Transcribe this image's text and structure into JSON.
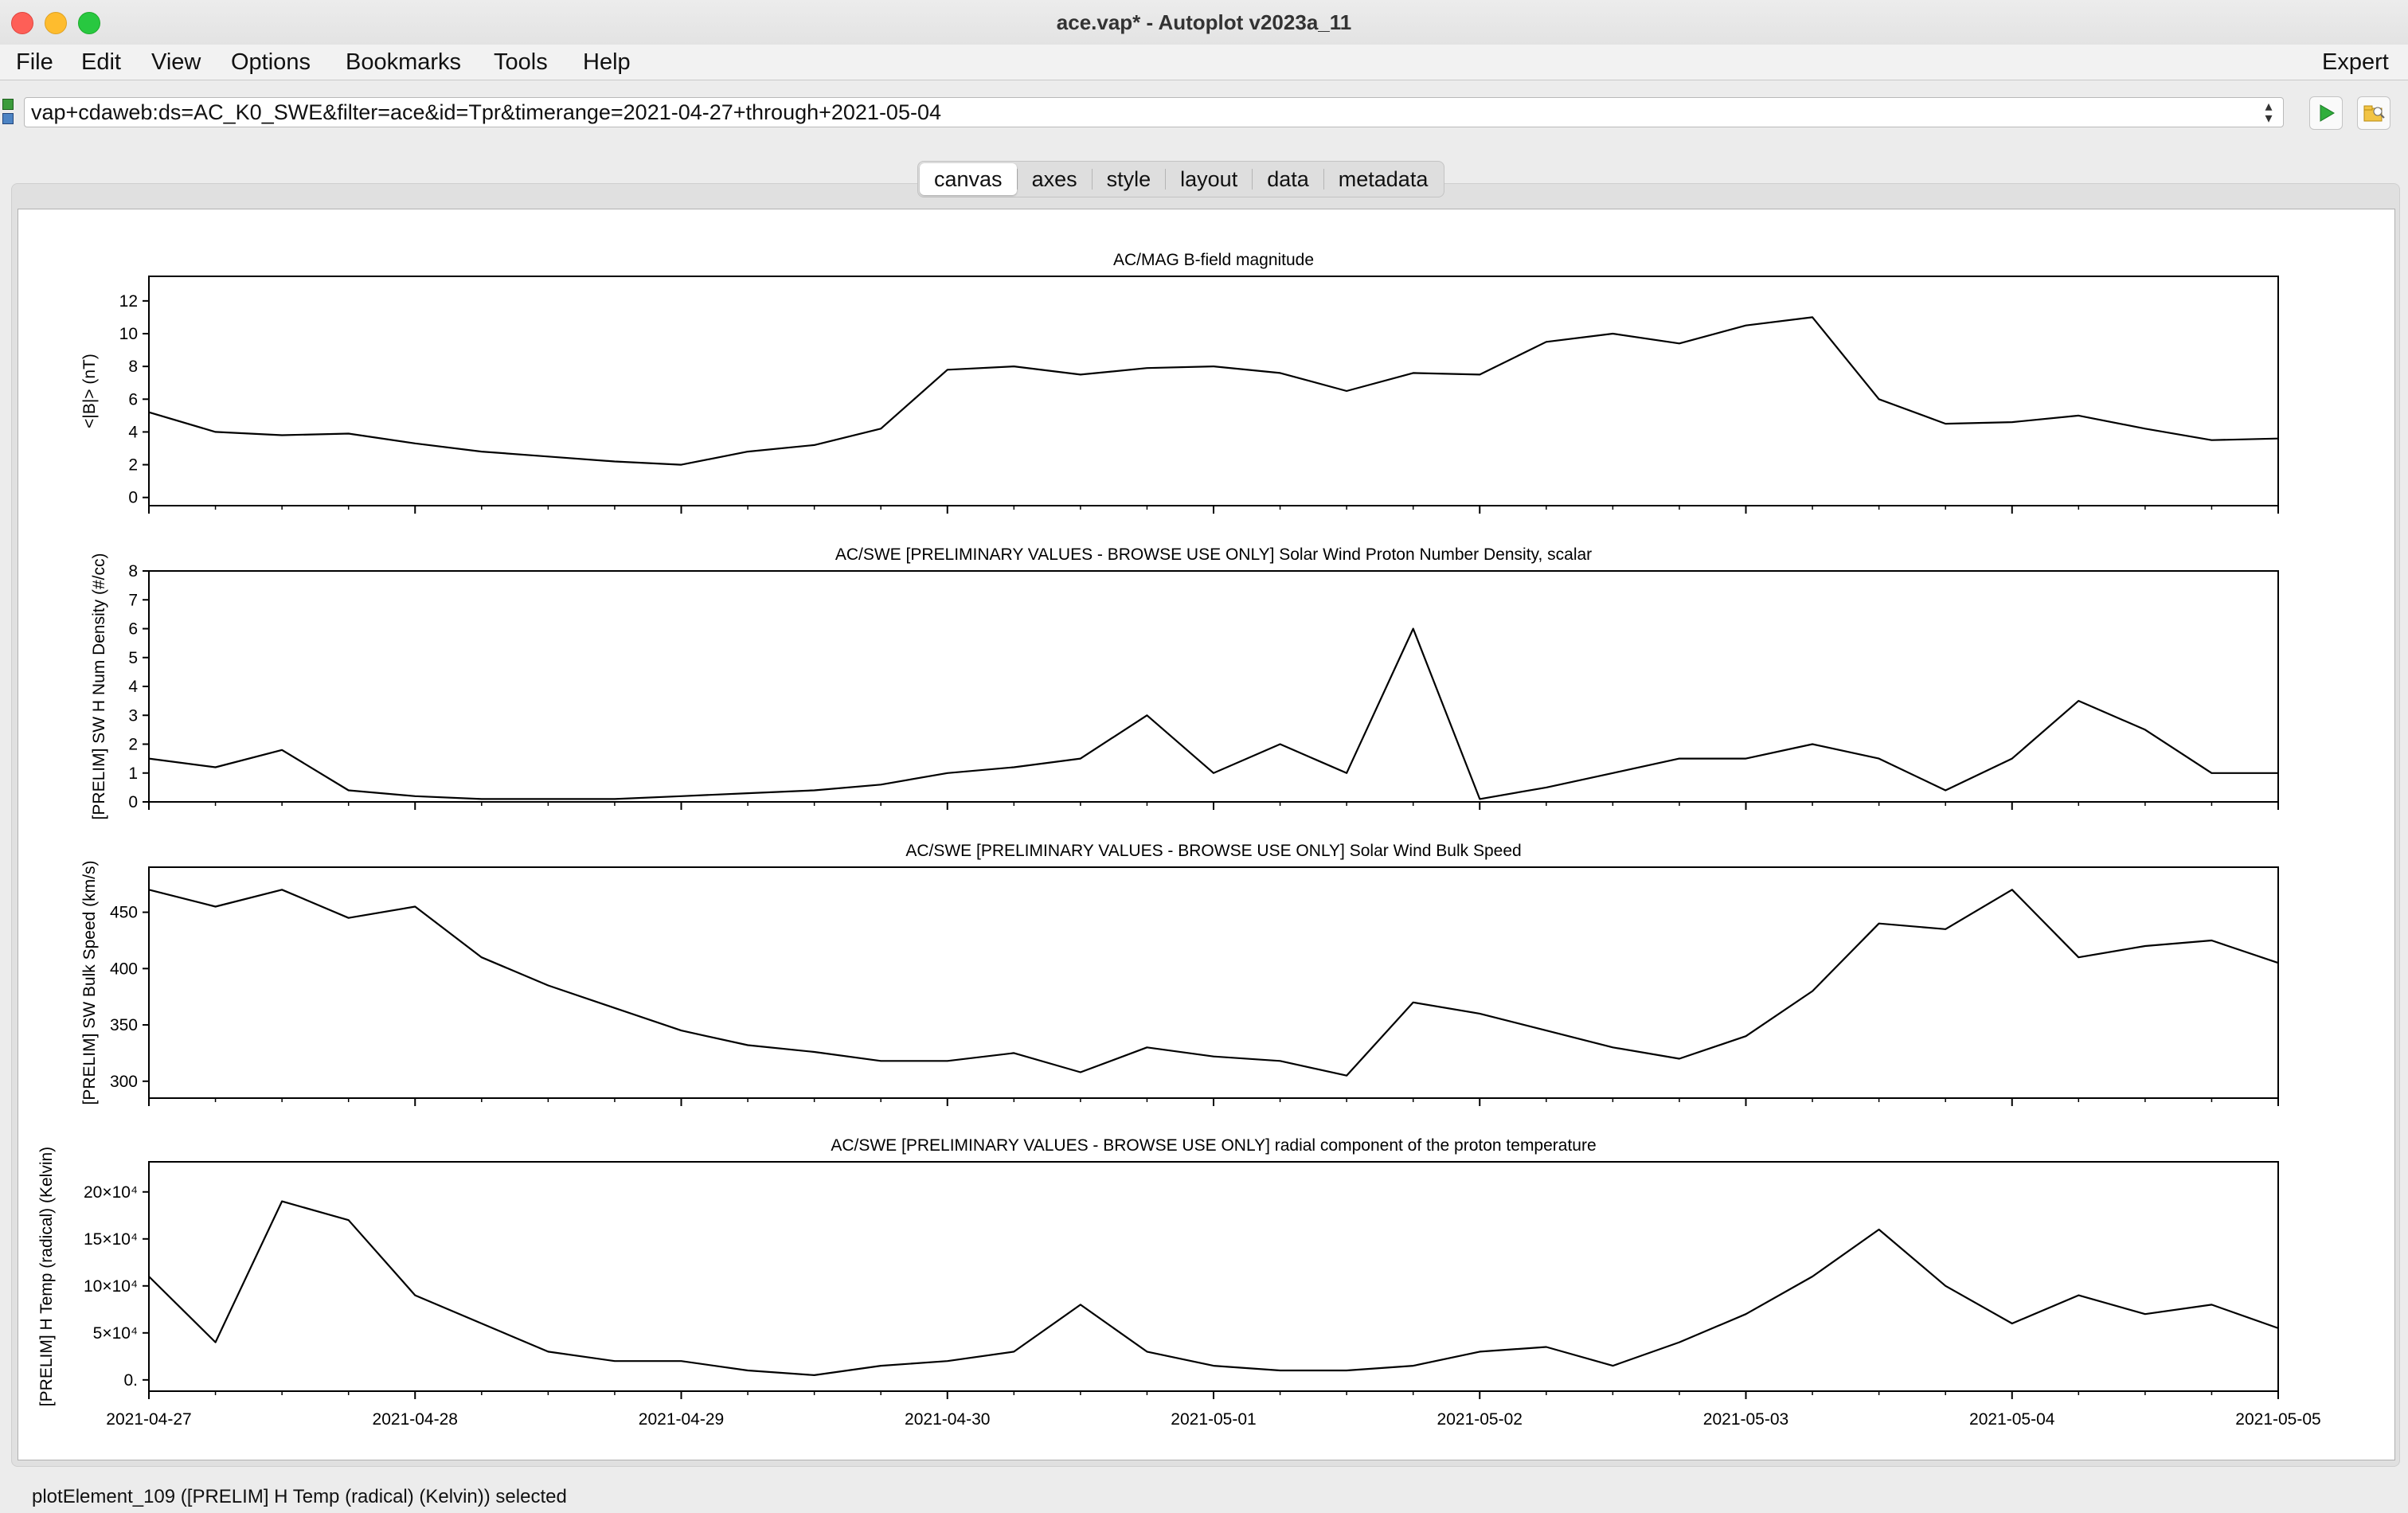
{
  "window": {
    "title": "ace.vap* - Autoplot v2023a_11"
  },
  "menubar": {
    "items": [
      "File",
      "Edit",
      "View",
      "Options",
      "Bookmarks",
      "Tools",
      "Help"
    ],
    "right_item": "Expert"
  },
  "address": {
    "uri": "vap+cdaweb:ds=AC_K0_SWE&filter=ace&id=Tpr&timerange=2021-04-27+through+2021-05-04"
  },
  "tabs": [
    {
      "label": "canvas",
      "active": true
    },
    {
      "label": "axes",
      "active": false
    },
    {
      "label": "style",
      "active": false
    },
    {
      "label": "layout",
      "active": false
    },
    {
      "label": "data",
      "active": false
    },
    {
      "label": "metadata",
      "active": false
    }
  ],
  "status": {
    "text": "plotElement_109 ([PRELIM] H Temp (radical) (Kelvin)) selected"
  },
  "chart_data": [
    {
      "type": "line",
      "title": "AC/MAG  B-field magnitude",
      "ylabel": "<|B|> (nT)",
      "xlabel": "",
      "xlim": [
        "2021-04-27",
        "2021-05-05"
      ],
      "ylim": [
        -0.5,
        13.5
      ],
      "yticks": [
        0,
        2,
        4,
        6,
        8,
        10,
        12
      ],
      "ytick_labels": [
        "0",
        "2",
        "4",
        "6",
        "8",
        "10",
        "12"
      ],
      "series": [
        {
          "x": [
            "2021-04-27 00:00",
            "2021-04-27 06:00",
            "2021-04-27 12:00",
            "2021-04-27 18:00",
            "2021-04-28 00:00",
            "2021-04-28 06:00",
            "2021-04-28 12:00",
            "2021-04-28 18:00",
            "2021-04-29 00:00",
            "2021-04-29 06:00",
            "2021-04-29 12:00",
            "2021-04-29 18:00",
            "2021-04-30 00:00",
            "2021-04-30 06:00",
            "2021-04-30 12:00",
            "2021-04-30 18:00",
            "2021-05-01 00:00",
            "2021-05-01 06:00",
            "2021-05-01 12:00",
            "2021-05-01 18:00",
            "2021-05-02 00:00",
            "2021-05-02 06:00",
            "2021-05-02 12:00",
            "2021-05-02 18:00",
            "2021-05-03 00:00",
            "2021-05-03 06:00",
            "2021-05-03 12:00",
            "2021-05-03 18:00",
            "2021-05-04 00:00",
            "2021-05-04 06:00",
            "2021-05-04 12:00",
            "2021-05-04 18:00",
            "2021-05-05 00:00"
          ],
          "y": [
            5.2,
            4.0,
            3.8,
            3.9,
            3.3,
            2.8,
            2.5,
            2.2,
            2.0,
            2.8,
            3.2,
            4.2,
            7.8,
            8.0,
            7.5,
            7.9,
            8.0,
            7.6,
            6.5,
            7.6,
            7.5,
            9.5,
            10.0,
            9.4,
            10.5,
            11.0,
            6.0,
            4.5,
            4.6,
            5.0,
            4.2,
            3.5,
            3.6
          ]
        }
      ]
    },
    {
      "type": "line",
      "title": "AC/SWE  [PRELIMINARY VALUES - BROWSE USE ONLY] Solar Wind Proton Number Density, scalar",
      "ylabel": "[PRELIM] SW H Num Density (#/cc)",
      "xlabel": "",
      "xlim": [
        "2021-04-27",
        "2021-05-05"
      ],
      "ylim": [
        0,
        8
      ],
      "yticks": [
        0,
        1,
        2,
        3,
        4,
        5,
        6,
        7,
        8
      ],
      "ytick_labels": [
        "0",
        "1",
        "2",
        "3",
        "4",
        "5",
        "6",
        "7",
        "8"
      ],
      "series": [
        {
          "x": [
            "2021-04-27 00:00",
            "2021-04-27 06:00",
            "2021-04-27 12:00",
            "2021-04-27 18:00",
            "2021-04-28 00:00",
            "2021-04-28 06:00",
            "2021-04-28 12:00",
            "2021-04-28 18:00",
            "2021-04-29 00:00",
            "2021-04-29 06:00",
            "2021-04-29 12:00",
            "2021-04-29 18:00",
            "2021-04-30 00:00",
            "2021-04-30 06:00",
            "2021-04-30 12:00",
            "2021-04-30 18:00",
            "2021-05-01 00:00",
            "2021-05-01 06:00",
            "2021-05-01 12:00",
            "2021-05-01 18:00",
            "2021-05-02 00:00",
            "2021-05-02 06:00",
            "2021-05-02 12:00",
            "2021-05-02 18:00",
            "2021-05-03 00:00",
            "2021-05-03 06:00",
            "2021-05-03 12:00",
            "2021-05-03 18:00",
            "2021-05-04 00:00",
            "2021-05-04 06:00",
            "2021-05-04 12:00",
            "2021-05-04 18:00",
            "2021-05-05 00:00"
          ],
          "y": [
            1.5,
            1.2,
            1.8,
            0.4,
            0.2,
            0.1,
            0.1,
            0.1,
            0.2,
            0.3,
            0.4,
            0.6,
            1.0,
            1.2,
            1.5,
            3.0,
            1.0,
            2.0,
            1.0,
            6.0,
            0.1,
            0.5,
            1.0,
            1.5,
            1.5,
            2.0,
            1.5,
            0.4,
            1.5,
            3.5,
            2.5,
            1.0,
            1.0
          ]
        }
      ]
    },
    {
      "type": "line",
      "title": "AC/SWE  [PRELIMINARY VALUES - BROWSE USE ONLY] Solar Wind Bulk Speed",
      "ylabel": "[PRELIM] SW Bulk Speed (km/s)",
      "xlabel": "",
      "xlim": [
        "2021-04-27",
        "2021-05-05"
      ],
      "ylim": [
        285,
        490
      ],
      "yticks": [
        300,
        350,
        400,
        450
      ],
      "ytick_labels": [
        "300",
        "350",
        "400",
        "450"
      ],
      "series": [
        {
          "x": [
            "2021-04-27 00:00",
            "2021-04-27 06:00",
            "2021-04-27 12:00",
            "2021-04-27 18:00",
            "2021-04-28 00:00",
            "2021-04-28 06:00",
            "2021-04-28 12:00",
            "2021-04-28 18:00",
            "2021-04-29 00:00",
            "2021-04-29 06:00",
            "2021-04-29 12:00",
            "2021-04-29 18:00",
            "2021-04-30 00:00",
            "2021-04-30 06:00",
            "2021-04-30 12:00",
            "2021-04-30 18:00",
            "2021-05-01 00:00",
            "2021-05-01 06:00",
            "2021-05-01 12:00",
            "2021-05-01 18:00",
            "2021-05-02 00:00",
            "2021-05-02 06:00",
            "2021-05-02 12:00",
            "2021-05-02 18:00",
            "2021-05-03 00:00",
            "2021-05-03 06:00",
            "2021-05-03 12:00",
            "2021-05-03 18:00",
            "2021-05-04 00:00",
            "2021-05-04 06:00",
            "2021-05-04 12:00",
            "2021-05-04 18:00",
            "2021-05-05 00:00"
          ],
          "y": [
            470,
            455,
            470,
            445,
            455,
            410,
            385,
            365,
            345,
            332,
            326,
            318,
            318,
            325,
            308,
            330,
            322,
            318,
            305,
            370,
            360,
            345,
            330,
            320,
            340,
            380,
            440,
            435,
            470,
            410,
            420,
            425,
            405
          ]
        }
      ]
    },
    {
      "type": "line",
      "title": "AC/SWE  [PRELIMINARY VALUES - BROWSE USE ONLY] radial component of the proton temperature",
      "ylabel": "[PRELIM] H Temp (radical) (Kelvin)",
      "xlabel": "",
      "xlim": [
        "2021-04-27",
        "2021-05-05"
      ],
      "ylim": [
        -12000,
        232000
      ],
      "yticks": [
        0,
        50000,
        100000,
        150000,
        200000
      ],
      "ytick_labels": [
        "0.",
        "5×10⁴",
        "10×10⁴",
        "15×10⁴",
        "20×10⁴"
      ],
      "xticks": [
        "2021-04-27",
        "2021-04-28",
        "2021-04-29",
        "2021-04-30",
        "2021-05-01",
        "2021-05-02",
        "2021-05-03",
        "2021-05-04",
        "2021-05-05"
      ],
      "series": [
        {
          "x": [
            "2021-04-27 00:00",
            "2021-04-27 06:00",
            "2021-04-27 12:00",
            "2021-04-27 18:00",
            "2021-04-28 00:00",
            "2021-04-28 06:00",
            "2021-04-28 12:00",
            "2021-04-28 18:00",
            "2021-04-29 00:00",
            "2021-04-29 06:00",
            "2021-04-29 12:00",
            "2021-04-29 18:00",
            "2021-04-30 00:00",
            "2021-04-30 06:00",
            "2021-04-30 12:00",
            "2021-04-30 18:00",
            "2021-05-01 00:00",
            "2021-05-01 06:00",
            "2021-05-01 12:00",
            "2021-05-01 18:00",
            "2021-05-02 00:00",
            "2021-05-02 06:00",
            "2021-05-02 12:00",
            "2021-05-02 18:00",
            "2021-05-03 00:00",
            "2021-05-03 06:00",
            "2021-05-03 12:00",
            "2021-05-03 18:00",
            "2021-05-04 00:00",
            "2021-05-04 06:00",
            "2021-05-04 12:00",
            "2021-05-04 18:00",
            "2021-05-05 00:00"
          ],
          "y": [
            110000,
            40000,
            190000,
            170000,
            90000,
            60000,
            30000,
            20000,
            20000,
            10000,
            5000,
            15000,
            20000,
            30000,
            80000,
            30000,
            15000,
            10000,
            10000,
            15000,
            30000,
            35000,
            15000,
            40000,
            70000,
            110000,
            160000,
            100000,
            60000,
            90000,
            70000,
            80000,
            55000
          ]
        }
      ]
    }
  ]
}
